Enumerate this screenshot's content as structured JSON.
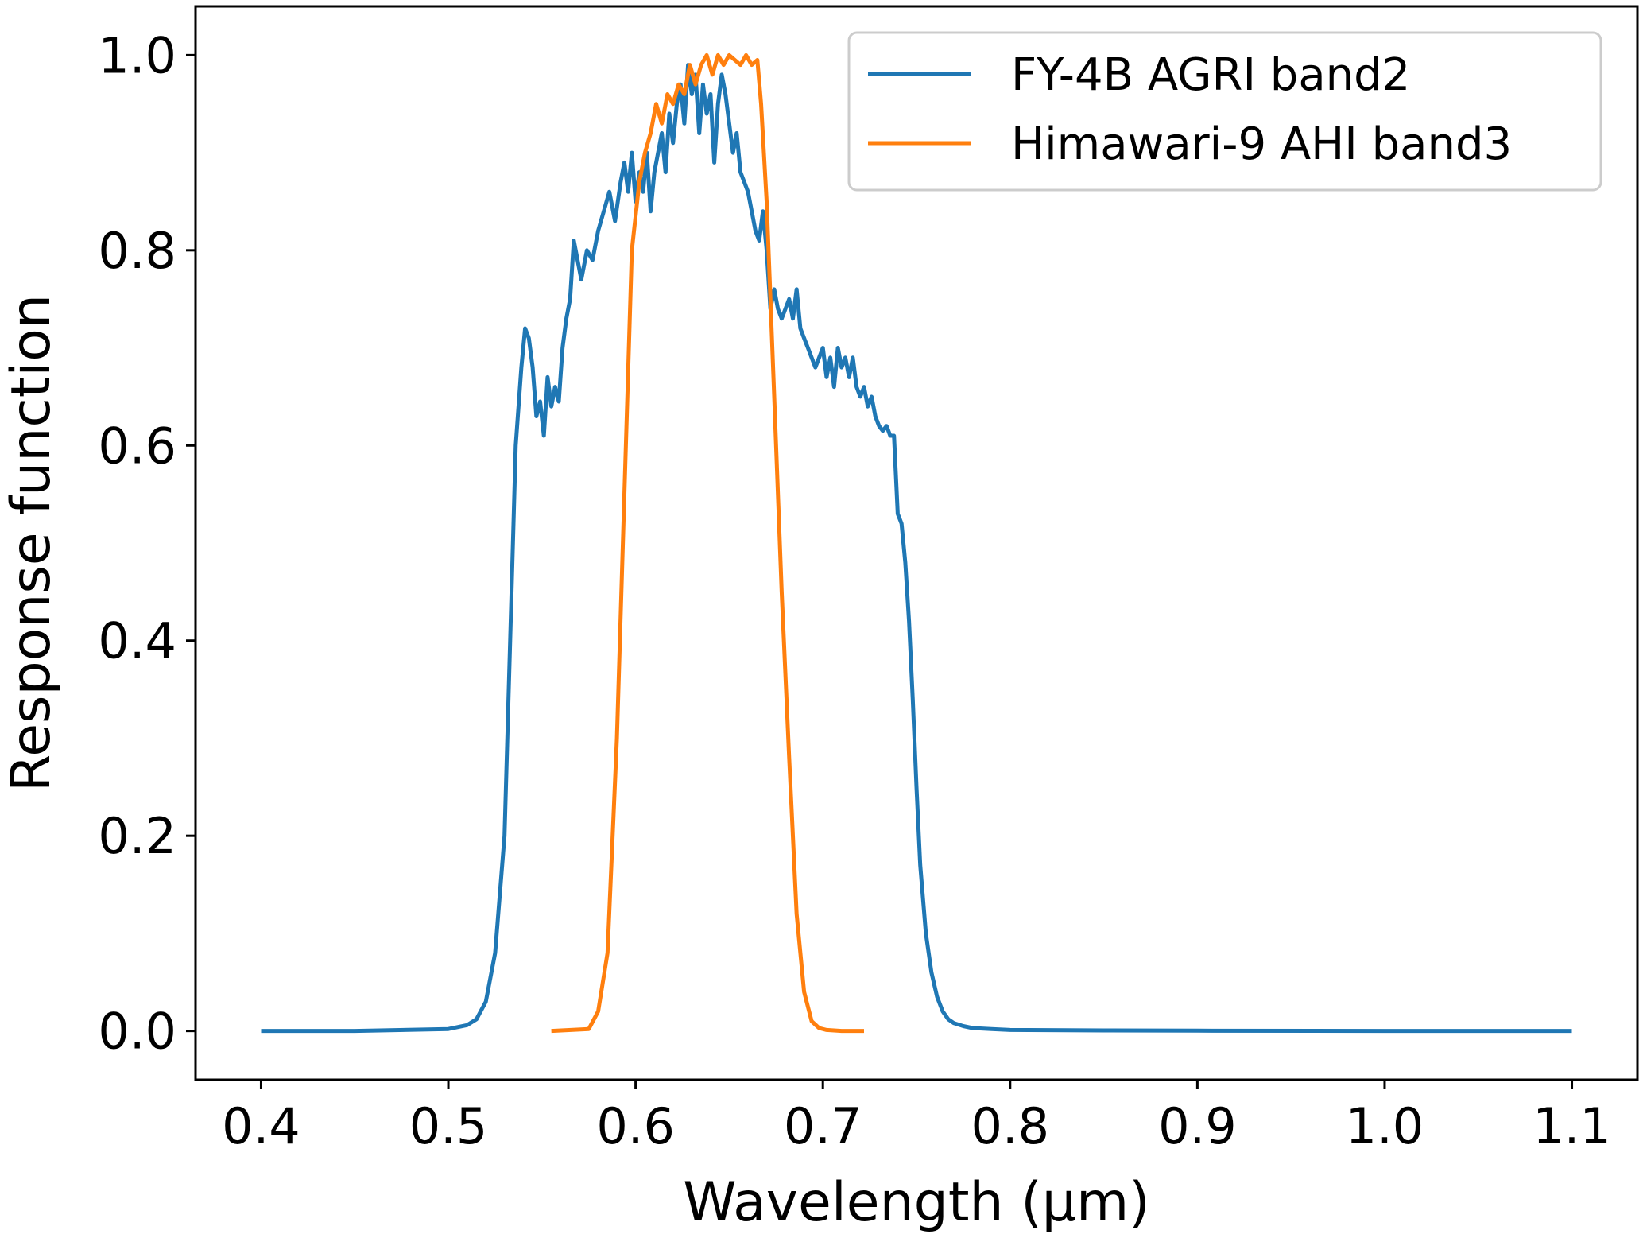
{
  "chart_data": {
    "type": "line",
    "title": "",
    "xlabel": "Wavelength (μm)",
    "ylabel": "Response function",
    "xlim": [
      0.365,
      1.135
    ],
    "ylim": [
      -0.05,
      1.05
    ],
    "xticks": [
      "0.4",
      "0.5",
      "0.6",
      "0.7",
      "0.8",
      "0.9",
      "1.0",
      "1.1"
    ],
    "yticks": [
      "0.0",
      "0.2",
      "0.4",
      "0.6",
      "0.8",
      "1.0"
    ],
    "grid": false,
    "legend": "top-right",
    "series": [
      {
        "name": "FY-4B AGRI band2",
        "color": "#1f77b4",
        "x": [
          0.4,
          0.45,
          0.5,
          0.51,
          0.515,
          0.52,
          0.525,
          0.53,
          0.533,
          0.536,
          0.539,
          0.541,
          0.543,
          0.545,
          0.547,
          0.549,
          0.551,
          0.553,
          0.555,
          0.557,
          0.559,
          0.561,
          0.563,
          0.565,
          0.567,
          0.569,
          0.571,
          0.574,
          0.577,
          0.58,
          0.583,
          0.586,
          0.589,
          0.592,
          0.594,
          0.596,
          0.598,
          0.6,
          0.602,
          0.604,
          0.606,
          0.608,
          0.61,
          0.612,
          0.614,
          0.616,
          0.618,
          0.62,
          0.622,
          0.624,
          0.626,
          0.628,
          0.63,
          0.632,
          0.634,
          0.636,
          0.638,
          0.64,
          0.642,
          0.644,
          0.646,
          0.648,
          0.65,
          0.652,
          0.654,
          0.656,
          0.658,
          0.66,
          0.662,
          0.664,
          0.666,
          0.668,
          0.67,
          0.672,
          0.674,
          0.676,
          0.678,
          0.68,
          0.682,
          0.684,
          0.686,
          0.688,
          0.69,
          0.692,
          0.694,
          0.696,
          0.698,
          0.7,
          0.702,
          0.704,
          0.706,
          0.708,
          0.71,
          0.712,
          0.714,
          0.716,
          0.718,
          0.72,
          0.722,
          0.724,
          0.726,
          0.728,
          0.73,
          0.732,
          0.734,
          0.736,
          0.738,
          0.74,
          0.742,
          0.744,
          0.746,
          0.748,
          0.75,
          0.752,
          0.755,
          0.758,
          0.761,
          0.764,
          0.767,
          0.77,
          0.775,
          0.78,
          0.79,
          0.8,
          0.85,
          0.9,
          1.0,
          1.1
        ],
        "y": [
          0.0,
          0.0,
          0.002,
          0.006,
          0.012,
          0.03,
          0.08,
          0.2,
          0.4,
          0.6,
          0.68,
          0.72,
          0.71,
          0.68,
          0.63,
          0.645,
          0.61,
          0.67,
          0.64,
          0.66,
          0.645,
          0.7,
          0.73,
          0.75,
          0.81,
          0.79,
          0.77,
          0.8,
          0.79,
          0.82,
          0.84,
          0.86,
          0.83,
          0.87,
          0.89,
          0.86,
          0.9,
          0.85,
          0.88,
          0.86,
          0.9,
          0.84,
          0.88,
          0.9,
          0.92,
          0.88,
          0.94,
          0.91,
          0.95,
          0.97,
          0.93,
          0.99,
          0.96,
          0.98,
          0.92,
          0.97,
          0.94,
          0.96,
          0.89,
          0.95,
          0.98,
          0.96,
          0.93,
          0.9,
          0.92,
          0.88,
          0.87,
          0.86,
          0.84,
          0.82,
          0.81,
          0.84,
          0.8,
          0.74,
          0.76,
          0.74,
          0.73,
          0.74,
          0.75,
          0.73,
          0.76,
          0.72,
          0.71,
          0.7,
          0.69,
          0.68,
          0.69,
          0.7,
          0.67,
          0.69,
          0.66,
          0.7,
          0.68,
          0.69,
          0.67,
          0.69,
          0.66,
          0.65,
          0.66,
          0.64,
          0.65,
          0.63,
          0.62,
          0.615,
          0.62,
          0.61,
          0.61,
          0.53,
          0.52,
          0.48,
          0.42,
          0.34,
          0.25,
          0.17,
          0.1,
          0.06,
          0.035,
          0.02,
          0.012,
          0.008,
          0.005,
          0.003,
          0.002,
          0.001,
          0.0005,
          0.0003,
          0.0,
          0.0
        ]
      },
      {
        "name": "Himawari-9 AHI band3",
        "color": "#ff7f0e",
        "x": [
          0.555,
          0.575,
          0.58,
          0.585,
          0.59,
          0.594,
          0.598,
          0.602,
          0.605,
          0.608,
          0.611,
          0.614,
          0.617,
          0.62,
          0.623,
          0.626,
          0.629,
          0.632,
          0.635,
          0.638,
          0.641,
          0.644,
          0.647,
          0.65,
          0.653,
          0.656,
          0.659,
          0.662,
          0.665,
          0.667,
          0.67,
          0.674,
          0.678,
          0.682,
          0.686,
          0.69,
          0.694,
          0.698,
          0.702,
          0.71,
          0.722
        ],
        "y": [
          0.0,
          0.002,
          0.02,
          0.08,
          0.3,
          0.55,
          0.8,
          0.87,
          0.9,
          0.92,
          0.95,
          0.93,
          0.96,
          0.95,
          0.97,
          0.96,
          0.99,
          0.97,
          0.99,
          1.0,
          0.98,
          1.0,
          0.99,
          1.0,
          0.995,
          0.99,
          1.0,
          0.99,
          0.995,
          0.95,
          0.85,
          0.65,
          0.45,
          0.28,
          0.12,
          0.04,
          0.01,
          0.003,
          0.001,
          0.0,
          0.0
        ]
      }
    ]
  }
}
